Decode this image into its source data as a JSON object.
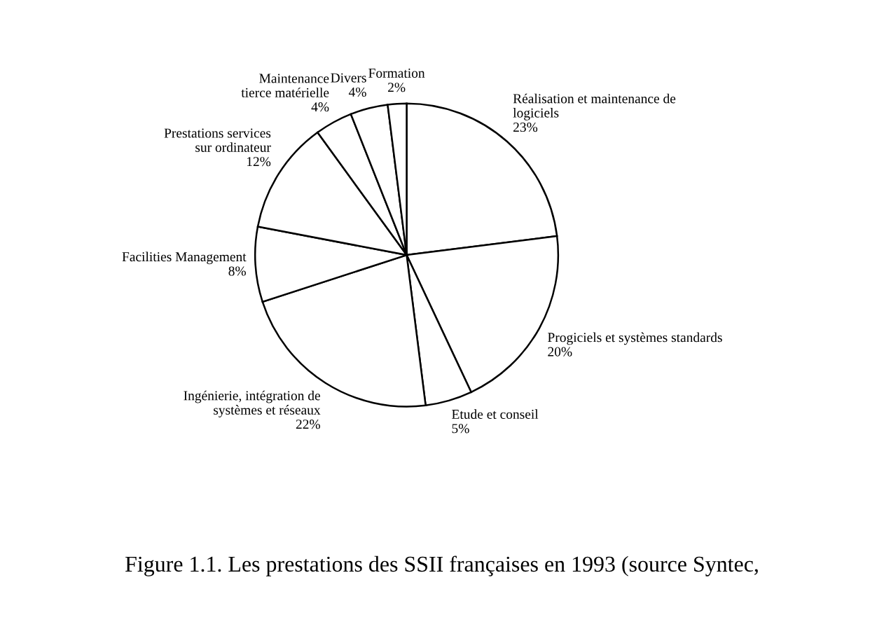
{
  "chart_data": {
    "type": "pie",
    "categories": [
      "Réalisation et maintenance de\nlogiciels",
      "Progiciels et systèmes standards",
      "Etude et conseil",
      "Ingénierie, intégration de\nsystèmes et réseaux",
      "Facilities Management",
      "Prestations services\nsur ordinateur",
      "Maintenance\ntierce matérielle",
      "Divers",
      "Formation"
    ],
    "values": [
      23,
      20,
      5,
      22,
      8,
      12,
      4,
      4,
      2
    ],
    "value_labels": [
      "23%",
      "20%",
      "5%",
      "22%",
      "8%",
      "12%",
      "4%",
      "4%",
      "2%"
    ],
    "colors": [
      "#ffffff",
      "#ffffff",
      "#ffffff",
      "#ffffff",
      "#ffffff",
      "#ffffff",
      "#ffffff",
      "#ffffff",
      "#ffffff"
    ],
    "annotations": [
      "Figure 1.1. Les prestations des SSII françaises en 1993 (source Syntec,"
    ]
  }
}
